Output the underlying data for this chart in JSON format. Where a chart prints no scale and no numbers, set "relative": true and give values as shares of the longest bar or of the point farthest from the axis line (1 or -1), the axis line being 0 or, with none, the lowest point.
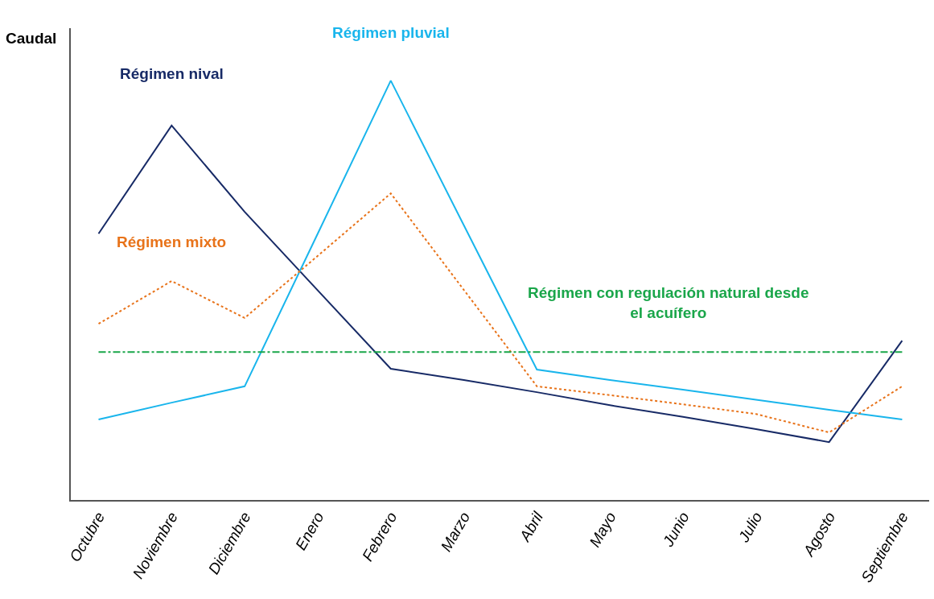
{
  "chart_data": {
    "type": "line",
    "relative": true,
    "ylabel": "Caudal",
    "categories": [
      "Octubre",
      "Noviembre",
      "Diciembre",
      "Enero",
      "Febrero",
      "Marzo",
      "Abril",
      "Mayo",
      "Junio",
      "Julio",
      "Agosto",
      "Septiembre"
    ],
    "grid": false,
    "legend": false,
    "marker": "none",
    "series": [
      {
        "name": "Régimen nival",
        "color": "#172a66",
        "line_style": "solid",
        "values": [
          0.635,
          0.893,
          0.687,
          0.5,
          0.313,
          0.286,
          0.257,
          0.226,
          0.198,
          0.169,
          0.138,
          0.38
        ]
      },
      {
        "name": "Régimen pluvial",
        "color": "#19b5ec",
        "line_style": "solid",
        "values": [
          0.192,
          0.232,
          0.271,
          0.635,
          1.0,
          0.655,
          0.311,
          0.286,
          0.263,
          0.239,
          0.215,
          0.192
        ]
      },
      {
        "name": "Régimen mixto",
        "color": "#e8731a",
        "line_style": "dotted",
        "values": [
          0.42,
          0.522,
          0.434,
          0.582,
          0.731,
          0.501,
          0.271,
          0.25,
          0.228,
          0.205,
          0.161,
          0.271
        ]
      },
      {
        "name": "Régimen con regulación natural desde el acuífero",
        "color": "#1aa64a",
        "line_style": "dashdot",
        "values": [
          0.353,
          0.353,
          0.353,
          0.353,
          0.353,
          0.353,
          0.353,
          0.353,
          0.353,
          0.353,
          0.353,
          0.353
        ]
      }
    ]
  }
}
